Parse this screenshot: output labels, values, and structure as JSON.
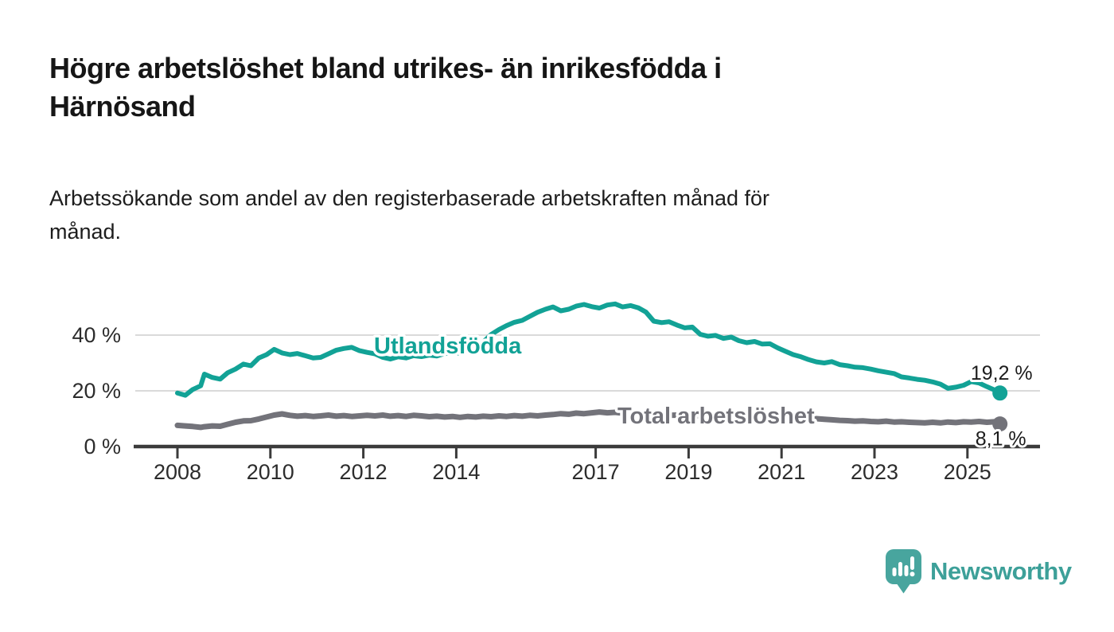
{
  "header": {
    "title": "Högre arbetslöshet bland utrikes- än inrikesfödda i\nHärnösand",
    "subtitle": "Arbetssökande som andel av den registerbaserade arbetskraften månad för\nmånad."
  },
  "footer": {
    "brand": "Newsworthy",
    "brand_color": "#3da099",
    "logo_bubble_color": "#48a59e"
  },
  "chart_data": {
    "type": "line",
    "title": "Högre arbetslöshet bland utrikes- än inrikesfödda i Härnösand",
    "subtitle": "Arbetssökande som andel av den registerbaserade arbetskraften månad för månad.",
    "unit": "%",
    "legend_position": "inline-labels",
    "x_axis": {
      "range": [
        2007.05,
        2026.55
      ],
      "grid": false,
      "ticks": [
        {
          "v": 2008,
          "label": "2008"
        },
        {
          "v": 2010,
          "label": "2010"
        },
        {
          "v": 2012,
          "label": "2012"
        },
        {
          "v": 2014,
          "label": "2014"
        },
        {
          "v": 2017,
          "label": "2017"
        },
        {
          "v": 2019,
          "label": "2019"
        },
        {
          "v": 2021,
          "label": "2021"
        },
        {
          "v": 2023,
          "label": "2023"
        },
        {
          "v": 2025,
          "label": "2025"
        }
      ]
    },
    "y_axis": {
      "range": [
        0,
        54
      ],
      "grid": true,
      "ticks": [
        {
          "v": 0,
          "label": "0 %"
        },
        {
          "v": 20,
          "label": "20 %"
        },
        {
          "v": 40,
          "label": "40 %"
        }
      ]
    },
    "series": [
      {
        "id": "utlandsfodda",
        "name": "Utlandsfödda",
        "color": "#12a296",
        "end_value": 19.2,
        "end_label": "19,2 %",
        "points": [
          [
            2008.0,
            19.2
          ],
          [
            2008.17,
            18.4
          ],
          [
            2008.33,
            20.5
          ],
          [
            2008.5,
            21.8
          ],
          [
            2008.58,
            26.0
          ],
          [
            2008.75,
            24.8
          ],
          [
            2008.92,
            24.2
          ],
          [
            2009.08,
            26.5
          ],
          [
            2009.25,
            27.8
          ],
          [
            2009.42,
            29.6
          ],
          [
            2009.58,
            29.0
          ],
          [
            2009.75,
            31.8
          ],
          [
            2009.92,
            33.0
          ],
          [
            2010.08,
            34.9
          ],
          [
            2010.25,
            33.6
          ],
          [
            2010.42,
            33.0
          ],
          [
            2010.58,
            33.4
          ],
          [
            2010.75,
            32.6
          ],
          [
            2010.92,
            31.8
          ],
          [
            2011.08,
            32.0
          ],
          [
            2011.25,
            33.3
          ],
          [
            2011.42,
            34.6
          ],
          [
            2011.58,
            35.2
          ],
          [
            2011.75,
            35.6
          ],
          [
            2011.92,
            34.4
          ],
          [
            2012.08,
            33.8
          ],
          [
            2012.25,
            33.3
          ],
          [
            2012.42,
            32.0
          ],
          [
            2012.58,
            31.4
          ],
          [
            2012.75,
            32.2
          ],
          [
            2012.92,
            31.8
          ],
          [
            2013.08,
            32.6
          ],
          [
            2013.25,
            32.3
          ],
          [
            2013.42,
            32.8
          ],
          [
            2013.58,
            32.5
          ],
          [
            2013.75,
            33.4
          ],
          [
            2013.92,
            33.8
          ],
          [
            2014.08,
            33.5
          ],
          [
            2014.25,
            34.3
          ],
          [
            2014.42,
            35.6
          ],
          [
            2014.58,
            37.5
          ],
          [
            2014.75,
            40.2
          ],
          [
            2014.92,
            42.0
          ],
          [
            2015.08,
            43.4
          ],
          [
            2015.25,
            44.6
          ],
          [
            2015.42,
            45.3
          ],
          [
            2015.58,
            46.7
          ],
          [
            2015.75,
            48.2
          ],
          [
            2015.92,
            49.3
          ],
          [
            2016.08,
            50.1
          ],
          [
            2016.25,
            48.7
          ],
          [
            2016.42,
            49.3
          ],
          [
            2016.58,
            50.4
          ],
          [
            2016.75,
            51.0
          ],
          [
            2016.92,
            50.2
          ],
          [
            2017.08,
            49.7
          ],
          [
            2017.25,
            50.8
          ],
          [
            2017.42,
            51.2
          ],
          [
            2017.58,
            50.1
          ],
          [
            2017.75,
            50.6
          ],
          [
            2017.92,
            49.8
          ],
          [
            2018.08,
            48.3
          ],
          [
            2018.25,
            45.0
          ],
          [
            2018.42,
            44.5
          ],
          [
            2018.58,
            44.8
          ],
          [
            2018.75,
            43.6
          ],
          [
            2018.92,
            42.6
          ],
          [
            2019.08,
            42.9
          ],
          [
            2019.25,
            40.3
          ],
          [
            2019.42,
            39.6
          ],
          [
            2019.58,
            39.9
          ],
          [
            2019.75,
            38.8
          ],
          [
            2019.92,
            39.3
          ],
          [
            2020.08,
            38.0
          ],
          [
            2020.25,
            37.3
          ],
          [
            2020.42,
            37.7
          ],
          [
            2020.58,
            36.8
          ],
          [
            2020.75,
            36.9
          ],
          [
            2020.92,
            35.4
          ],
          [
            2021.08,
            34.2
          ],
          [
            2021.25,
            33.0
          ],
          [
            2021.42,
            32.2
          ],
          [
            2021.58,
            31.2
          ],
          [
            2021.75,
            30.4
          ],
          [
            2021.92,
            30.0
          ],
          [
            2022.08,
            30.5
          ],
          [
            2022.25,
            29.4
          ],
          [
            2022.42,
            29.0
          ],
          [
            2022.58,
            28.5
          ],
          [
            2022.75,
            28.3
          ],
          [
            2022.92,
            27.8
          ],
          [
            2023.08,
            27.2
          ],
          [
            2023.25,
            26.7
          ],
          [
            2023.42,
            26.2
          ],
          [
            2023.58,
            25.0
          ],
          [
            2023.75,
            24.6
          ],
          [
            2023.92,
            24.1
          ],
          [
            2024.08,
            23.8
          ],
          [
            2024.25,
            23.2
          ],
          [
            2024.42,
            22.4
          ],
          [
            2024.58,
            20.9
          ],
          [
            2024.75,
            21.3
          ],
          [
            2024.92,
            22.0
          ],
          [
            2025.08,
            23.3
          ],
          [
            2025.25,
            22.8
          ],
          [
            2025.42,
            21.5
          ],
          [
            2025.58,
            20.3
          ],
          [
            2025.7,
            19.2
          ]
        ]
      },
      {
        "id": "total",
        "name": "Total arbetslöshet",
        "color": "#73737a",
        "end_value": 8.1,
        "end_label": "8,1 %",
        "points": [
          [
            2008.0,
            7.6
          ],
          [
            2008.17,
            7.4
          ],
          [
            2008.33,
            7.2
          ],
          [
            2008.5,
            6.9
          ],
          [
            2008.58,
            7.1
          ],
          [
            2008.75,
            7.4
          ],
          [
            2008.92,
            7.3
          ],
          [
            2009.08,
            8.0
          ],
          [
            2009.25,
            8.7
          ],
          [
            2009.42,
            9.2
          ],
          [
            2009.58,
            9.3
          ],
          [
            2009.75,
            9.9
          ],
          [
            2009.92,
            10.6
          ],
          [
            2010.08,
            11.3
          ],
          [
            2010.25,
            11.7
          ],
          [
            2010.42,
            11.2
          ],
          [
            2010.58,
            10.9
          ],
          [
            2010.75,
            11.1
          ],
          [
            2010.92,
            10.8
          ],
          [
            2011.08,
            11.0
          ],
          [
            2011.25,
            11.3
          ],
          [
            2011.42,
            10.9
          ],
          [
            2011.58,
            11.1
          ],
          [
            2011.75,
            10.8
          ],
          [
            2011.92,
            11.0
          ],
          [
            2012.08,
            11.2
          ],
          [
            2012.25,
            11.0
          ],
          [
            2012.42,
            11.3
          ],
          [
            2012.58,
            10.9
          ],
          [
            2012.75,
            11.1
          ],
          [
            2012.92,
            10.8
          ],
          [
            2013.08,
            11.2
          ],
          [
            2013.25,
            11.0
          ],
          [
            2013.42,
            10.7
          ],
          [
            2013.58,
            10.9
          ],
          [
            2013.75,
            10.6
          ],
          [
            2013.92,
            10.8
          ],
          [
            2014.08,
            10.5
          ],
          [
            2014.25,
            10.8
          ],
          [
            2014.42,
            10.6
          ],
          [
            2014.58,
            10.9
          ],
          [
            2014.75,
            10.7
          ],
          [
            2014.92,
            11.0
          ],
          [
            2015.08,
            10.8
          ],
          [
            2015.25,
            11.1
          ],
          [
            2015.42,
            10.9
          ],
          [
            2015.58,
            11.2
          ],
          [
            2015.75,
            11.0
          ],
          [
            2015.92,
            11.3
          ],
          [
            2016.08,
            11.5
          ],
          [
            2016.25,
            11.8
          ],
          [
            2016.42,
            11.6
          ],
          [
            2016.58,
            12.0
          ],
          [
            2016.75,
            11.8
          ],
          [
            2016.92,
            12.1
          ],
          [
            2017.08,
            12.4
          ],
          [
            2017.25,
            12.1
          ],
          [
            2017.42,
            12.3
          ],
          [
            2017.58,
            12.0
          ],
          [
            2017.75,
            12.2
          ],
          [
            2017.92,
            11.9
          ],
          [
            2018.08,
            11.6
          ],
          [
            2018.25,
            11.4
          ],
          [
            2018.42,
            11.5
          ],
          [
            2018.58,
            11.2
          ],
          [
            2018.75,
            11.3
          ],
          [
            2018.92,
            11.1
          ],
          [
            2019.08,
            11.2
          ],
          [
            2019.25,
            10.9
          ],
          [
            2019.42,
            11.1
          ],
          [
            2019.58,
            10.8
          ],
          [
            2019.75,
            11.0
          ],
          [
            2019.92,
            10.9
          ],
          [
            2020.08,
            11.0
          ],
          [
            2020.25,
            10.8
          ],
          [
            2020.42,
            10.9
          ],
          [
            2020.58,
            10.7
          ],
          [
            2020.75,
            10.8
          ],
          [
            2020.92,
            10.6
          ],
          [
            2021.08,
            10.5
          ],
          [
            2021.25,
            10.3
          ],
          [
            2021.42,
            10.4
          ],
          [
            2021.58,
            10.1
          ],
          [
            2021.75,
            10.0
          ],
          [
            2021.92,
            9.8
          ],
          [
            2022.08,
            9.6
          ],
          [
            2022.25,
            9.4
          ],
          [
            2022.42,
            9.3
          ],
          [
            2022.58,
            9.1
          ],
          [
            2022.75,
            9.2
          ],
          [
            2022.92,
            9.0
          ],
          [
            2023.08,
            8.9
          ],
          [
            2023.25,
            9.1
          ],
          [
            2023.42,
            8.8
          ],
          [
            2023.58,
            8.9
          ],
          [
            2023.75,
            8.7
          ],
          [
            2023.92,
            8.6
          ],
          [
            2024.08,
            8.5
          ],
          [
            2024.25,
            8.7
          ],
          [
            2024.42,
            8.5
          ],
          [
            2024.58,
            8.8
          ],
          [
            2024.75,
            8.6
          ],
          [
            2024.92,
            8.9
          ],
          [
            2025.08,
            8.8
          ],
          [
            2025.25,
            9.0
          ],
          [
            2025.42,
            8.7
          ],
          [
            2025.58,
            8.9
          ],
          [
            2025.7,
            8.1
          ]
        ]
      }
    ]
  }
}
